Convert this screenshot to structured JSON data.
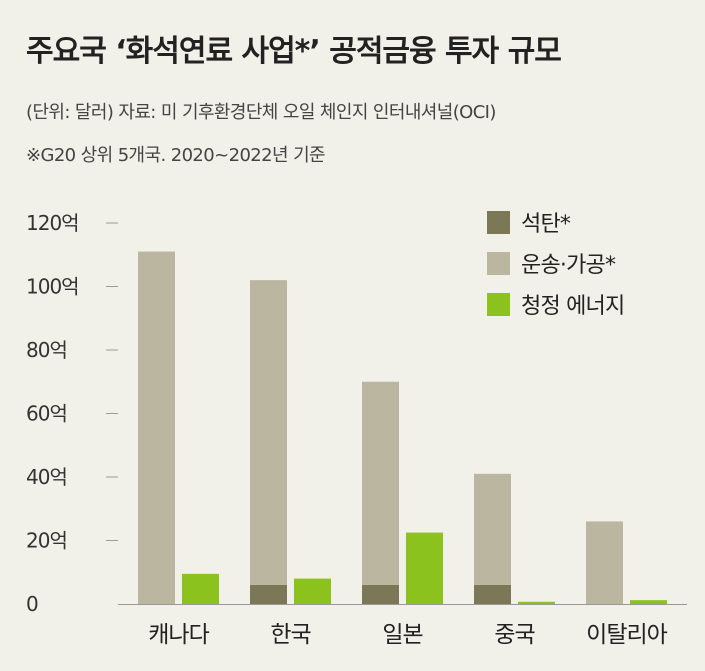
{
  "title": "주요국 ‘화석연료 사업*’ 공적금융 투자 규모",
  "subtitle_unit_source": "(단위: 달러) 자료: 미 기후환경단체 오일 체인지 인터내셔널(OCI)",
  "subtitle_note": "※G20 상위 5개국. 2020~2022년 기준",
  "colors": {
    "background": "#f2f1e9",
    "coal": "#7c7756",
    "transport": "#bab6a0",
    "clean": "#8cc21d",
    "axis": "#999999"
  },
  "chart_data": {
    "type": "bar",
    "categories": [
      "캐나다",
      "한국",
      "일본",
      "중국",
      "이탈리아"
    ],
    "series": [
      {
        "name": "석탄*",
        "values": [
          0,
          6,
          6,
          6,
          0
        ],
        "color_key": "coal"
      },
      {
        "name": "운송·가공*",
        "values": [
          111,
          96,
          64,
          35,
          26
        ],
        "color_key": "transport"
      },
      {
        "name": "청정 에너지",
        "values": [
          9.5,
          8,
          22.5,
          0.7,
          1.2
        ],
        "color_key": "clean"
      }
    ],
    "stacked_series": [
      "석탄*",
      "운송·가공*"
    ],
    "ylim": [
      0,
      120
    ],
    "yticks": [
      0,
      20,
      40,
      60,
      80,
      100,
      120
    ],
    "ytick_labels": [
      "0",
      "20억",
      "40억",
      "60억",
      "80억",
      "100억",
      "120억"
    ],
    "legend_position": "top-right",
    "grid": false
  }
}
